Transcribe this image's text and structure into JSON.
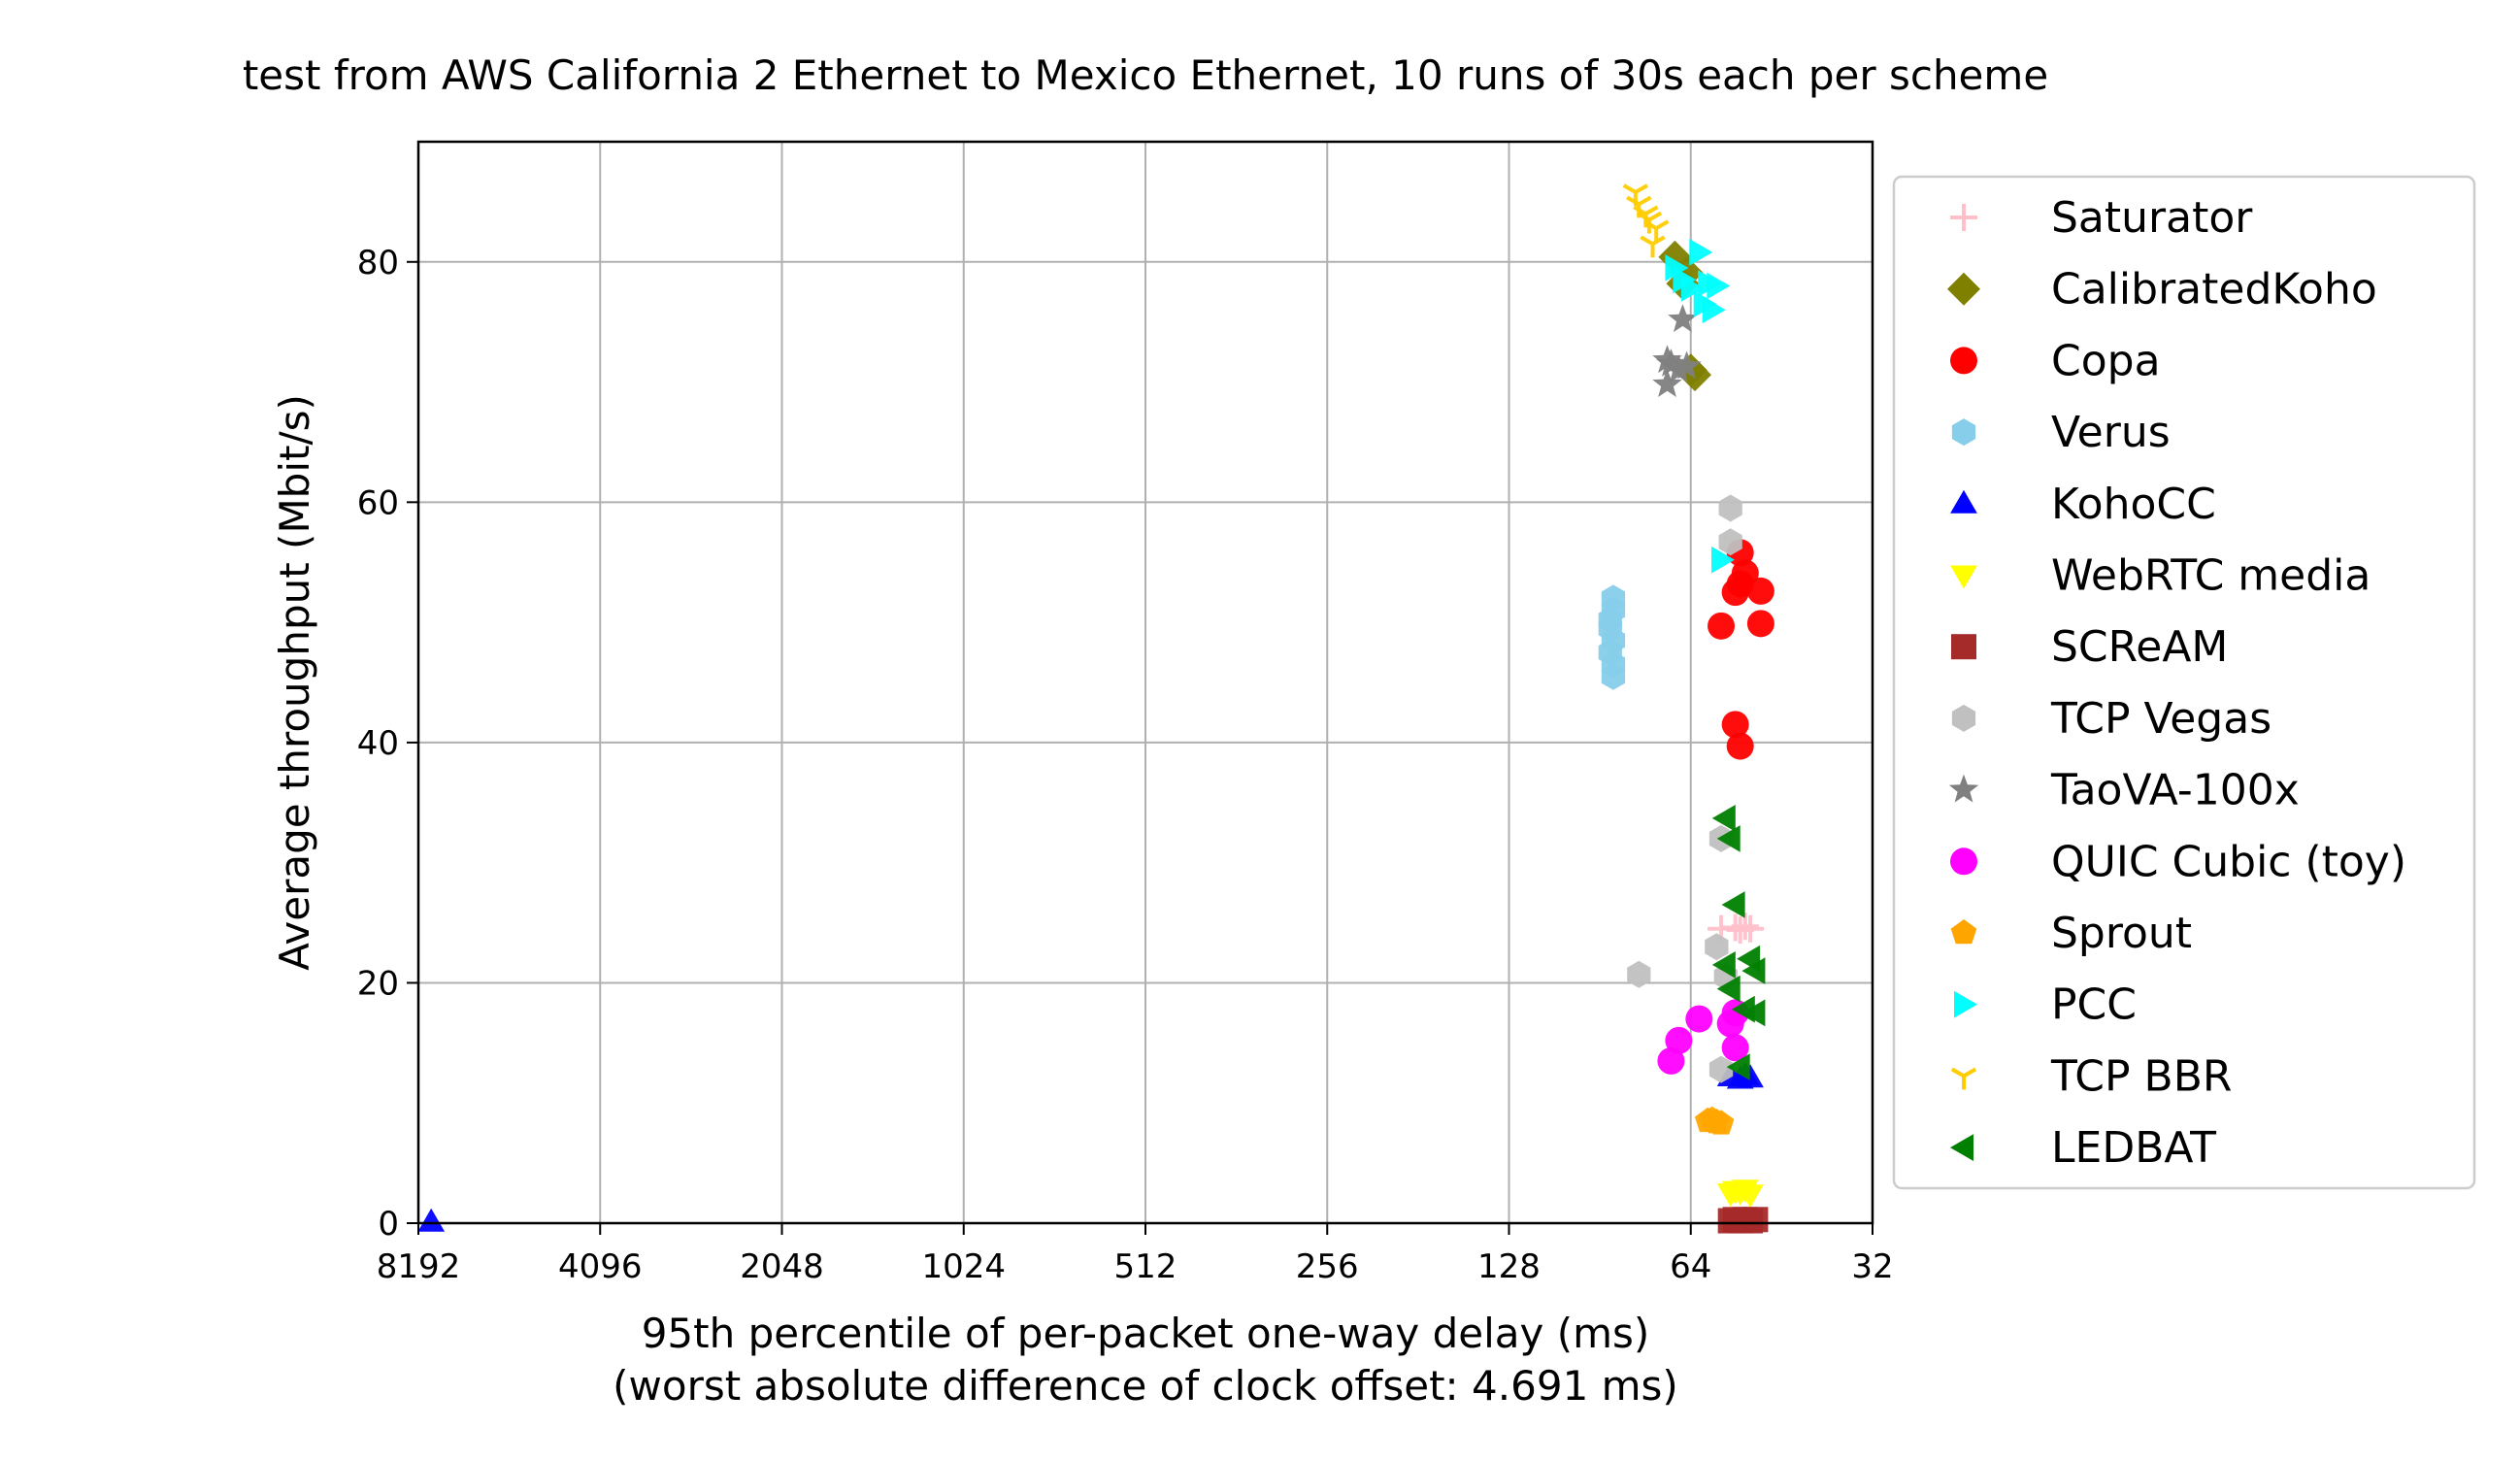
{
  "chart_data": {
    "type": "scatter",
    "title": "test from AWS California 2 Ethernet to Mexico Ethernet, 10 runs of 30s each per scheme",
    "xlabel": "95th percentile of per-packet one-way delay (ms)",
    "xlabel2": "(worst absolute difference of clock offset: 4.691 ms)",
    "ylabel": "Average throughput (Mbit/s)",
    "x_scale": "log2",
    "x_reversed": true,
    "xlim": [
      8192,
      32
    ],
    "ylim": [
      0,
      90
    ],
    "x_ticks": [
      8192,
      4096,
      2048,
      1024,
      512,
      256,
      128,
      64,
      32
    ],
    "x_tick_labels": [
      "8192",
      "4096",
      "2048",
      "1024",
      "512",
      "256",
      "128",
      "64",
      "32"
    ],
    "y_ticks": [
      0,
      20,
      40,
      60,
      80
    ],
    "y_tick_labels": [
      "0",
      "20",
      "40",
      "60",
      "80"
    ],
    "grid": true,
    "legend_position": "outside-right",
    "series": [
      {
        "name": "Saturator",
        "color": "#ffc0cb",
        "marker": "plus",
        "x": [
          57,
          54,
          53,
          52,
          51
        ],
        "y": [
          24.5,
          24.6,
          24.4,
          24.7,
          24.5
        ]
      },
      {
        "name": "CalibratedKoho",
        "color": "#808000",
        "marker": "diamond",
        "x": [
          68,
          65,
          66,
          64,
          63
        ],
        "y": [
          80.4,
          79.1,
          78.2,
          71.0,
          70.6
        ]
      },
      {
        "name": "Copa",
        "color": "#ff0000",
        "marker": "circle",
        "x": [
          53,
          52,
          53,
          54,
          49,
          49,
          57,
          54,
          53
        ],
        "y": [
          55.8,
          54.1,
          53.2,
          52.5,
          52.6,
          49.9,
          49.7,
          41.5,
          39.7
        ]
      },
      {
        "name": "Verus",
        "color": "#87ceeb",
        "marker": "hexagon",
        "x": [
          86,
          86,
          87,
          86,
          87,
          86,
          86,
          87
        ],
        "y": [
          52.0,
          51.0,
          49.5,
          48.5,
          47.5,
          46.5,
          45.5,
          50.2
        ]
      },
      {
        "name": "KohoCC",
        "color": "#0000ff",
        "marker": "triangle-up",
        "x": [
          7800,
          55,
          53,
          52,
          51
        ],
        "y": [
          0.1,
          12.2,
          12.0,
          12.3,
          12.1
        ]
      },
      {
        "name": "WebRTC media",
        "color": "#ffff00",
        "marker": "triangle-down",
        "x": [
          55,
          54,
          53,
          52,
          51
        ],
        "y": [
          2.5,
          2.7,
          2.6,
          2.8,
          2.4
        ]
      },
      {
        "name": "SCReAM",
        "color": "#a52a2a",
        "marker": "square",
        "x": [
          55,
          54,
          53,
          52,
          51,
          50
        ],
        "y": [
          0.2,
          0.3,
          0.2,
          0.3,
          0.2,
          0.3
        ]
      },
      {
        "name": "TCP Vegas",
        "color": "#c0c0c0",
        "marker": "hexagon",
        "x": [
          55,
          55,
          57,
          78,
          58,
          56,
          57
        ],
        "y": [
          59.5,
          56.7,
          32.0,
          20.7,
          23.0,
          20.5,
          12.8
        ]
      },
      {
        "name": "TaoVA-100x",
        "color": "#808080",
        "marker": "star",
        "x": [
          66,
          70,
          69,
          70,
          67,
          65
        ],
        "y": [
          75.2,
          71.8,
          71.5,
          69.8,
          71.0,
          71.3
        ]
      },
      {
        "name": "QUIC Cubic (toy)",
        "color": "#ff00ff",
        "marker": "circle",
        "x": [
          69,
          67,
          62,
          54,
          55,
          54
        ],
        "y": [
          13.5,
          15.2,
          17.0,
          17.5,
          16.6,
          14.6
        ]
      },
      {
        "name": "Sprout",
        "color": "#ffa500",
        "marker": "pentagon",
        "x": [
          60,
          59,
          58,
          57
        ],
        "y": [
          8.5,
          8.6,
          8.4,
          8.3
        ]
      },
      {
        "name": "PCC",
        "color": "#00ffff",
        "marker": "triangle-right",
        "x": [
          62,
          68,
          66,
          64,
          60,
          58,
          61,
          59,
          57
        ],
        "y": [
          80.8,
          79.5,
          78.5,
          77.8,
          78.2,
          78.0,
          76.5,
          76.0,
          55.2
        ]
      },
      {
        "name": "TCP BBR",
        "color": "#ffcc00",
        "marker": "tri-down",
        "x": [
          79,
          78,
          76,
          75,
          73,
          74
        ],
        "y": [
          85.8,
          84.8,
          84.0,
          83.5,
          82.8,
          81.5
        ]
      },
      {
        "name": "LEDBAT",
        "color": "#008000",
        "marker": "triangle-left",
        "x": [
          56,
          55,
          54,
          51,
          50,
          56,
          55,
          52,
          50,
          53
        ],
        "y": [
          33.7,
          32.0,
          26.5,
          22.0,
          21.0,
          21.5,
          19.5,
          17.8,
          17.5,
          13.0
        ]
      }
    ]
  }
}
